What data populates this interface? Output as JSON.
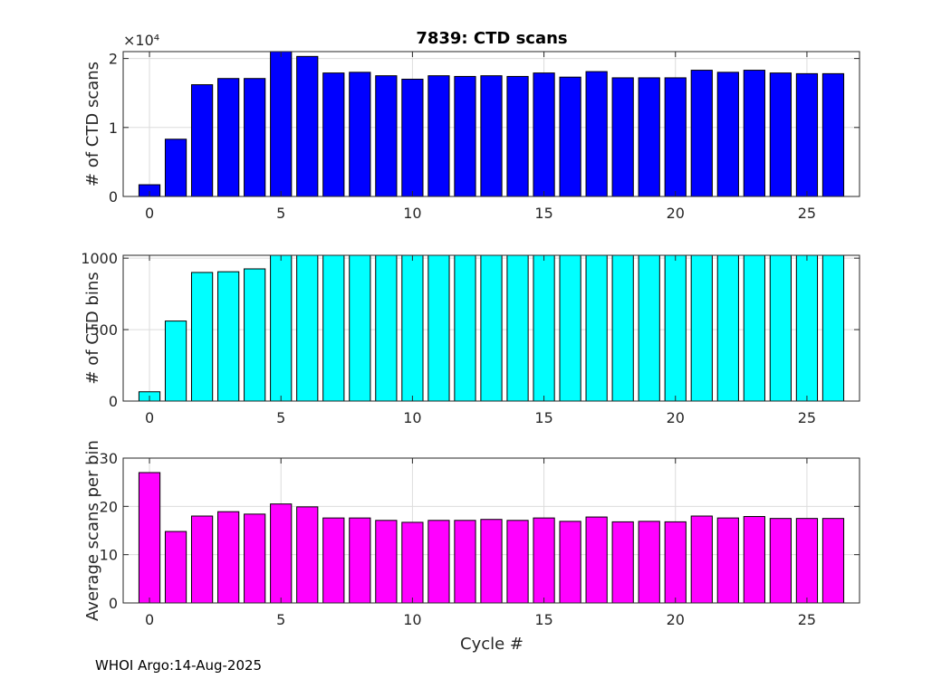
{
  "title": "7839: CTD scans",
  "footer": "WHOI Argo:14-Aug-2025",
  "xlabel": "Cycle #",
  "chart_data": [
    {
      "type": "bar",
      "name": "scans",
      "title": "7839: CTD scans",
      "ylabel": "# of CTD scans",
      "color": "#0000ff",
      "ylim": [
        0,
        21000
      ],
      "yticks": [
        0,
        10000,
        20000
      ],
      "ytick_labels": [
        "0",
        "1",
        "2"
      ],
      "exponent_label": "×10⁴",
      "xlim": [
        -1,
        27
      ],
      "xticks": [
        0,
        5,
        10,
        15,
        20,
        25
      ],
      "x": [
        0,
        1,
        2,
        3,
        4,
        5,
        6,
        7,
        8,
        9,
        10,
        11,
        12,
        13,
        14,
        15,
        16,
        17,
        18,
        19,
        20,
        21,
        22,
        23,
        24,
        25,
        26
      ],
      "values": [
        1700,
        8300,
        16200,
        17100,
        17100,
        21000,
        20300,
        17900,
        18000,
        17500,
        17000,
        17500,
        17400,
        17500,
        17400,
        17900,
        17300,
        18100,
        17200,
        17200,
        17200,
        18300,
        18000,
        18300,
        17900,
        17800,
        17800
      ]
    },
    {
      "type": "bar",
      "name": "bins",
      "ylabel": "# of CTD bins",
      "color": "#00ffff",
      "ylim": [
        0,
        1020
      ],
      "yticks": [
        0,
        500,
        1000
      ],
      "ytick_labels": [
        "0",
        "500",
        "1000"
      ],
      "xlim": [
        -1,
        27
      ],
      "xticks": [
        0,
        5,
        10,
        15,
        20,
        25
      ],
      "x": [
        0,
        1,
        2,
        3,
        4,
        5,
        6,
        7,
        8,
        9,
        10,
        11,
        12,
        13,
        14,
        15,
        16,
        17,
        18,
        19,
        20,
        21,
        22,
        23,
        24,
        25,
        26
      ],
      "values": [
        65,
        560,
        900,
        905,
        925,
        1020,
        1020,
        1020,
        1020,
        1020,
        1020,
        1020,
        1020,
        1020,
        1020,
        1020,
        1020,
        1020,
        1020,
        1020,
        1020,
        1020,
        1020,
        1020,
        1020,
        1020,
        1020
      ]
    },
    {
      "type": "bar",
      "name": "avg",
      "ylabel": "Average scans per bin",
      "xlabel": "Cycle #",
      "color": "#ff00ff",
      "ylim": [
        0,
        30
      ],
      "yticks": [
        0,
        10,
        20,
        30
      ],
      "ytick_labels": [
        "0",
        "10",
        "20",
        "30"
      ],
      "xlim": [
        -1,
        27
      ],
      "xticks": [
        0,
        5,
        10,
        15,
        20,
        25
      ],
      "x": [
        0,
        1,
        2,
        3,
        4,
        5,
        6,
        7,
        8,
        9,
        10,
        11,
        12,
        13,
        14,
        15,
        16,
        17,
        18,
        19,
        20,
        21,
        22,
        23,
        24,
        25,
        26
      ],
      "values": [
        27,
        14.8,
        18,
        18.9,
        18.4,
        20.5,
        19.9,
        17.6,
        17.6,
        17.1,
        16.7,
        17.1,
        17.1,
        17.3,
        17.1,
        17.6,
        16.9,
        17.8,
        16.8,
        16.9,
        16.8,
        18,
        17.6,
        17.9,
        17.5,
        17.5,
        17.5
      ]
    }
  ]
}
